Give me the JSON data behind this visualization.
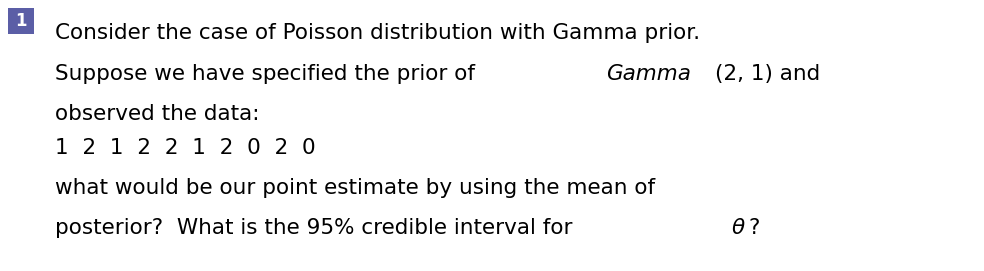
{
  "background_color": "#ffffff",
  "badge_color": "#5b5ea6",
  "badge_text": "1",
  "badge_text_color": "#ffffff",
  "text_color": "#000000",
  "main_fontsize": 15.5,
  "data_fontsize": 15.5,
  "line1": "Consider the case of Poisson distribution with Gamma prior.",
  "line2_part1": "Suppose we have specified the prior of ",
  "line2_italic": "Gamma",
  "line2_part2": "(2, 1) and",
  "line3": "observed the data:",
  "line4": "1  2  1  2  2  1  2  0  2  0",
  "line5": "what would be our point estimate by using the mean of",
  "line6_part1": "posterior?  What is the 95% credible interval for ",
  "line6_theta": "θ",
  "line6_part2": "?"
}
